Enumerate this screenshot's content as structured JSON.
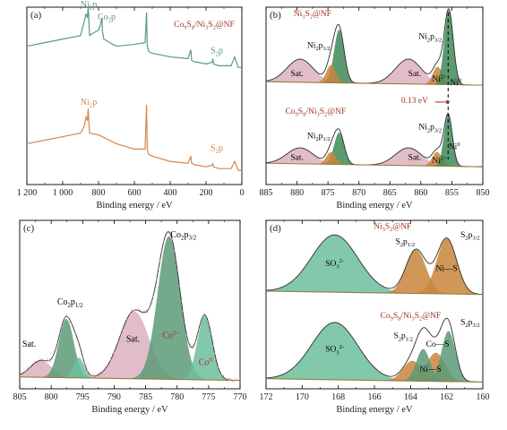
{
  "figure": {
    "colors": {
      "green": "#5d9a78",
      "orange": "#d6874a",
      "green_dark": "#3f8a58",
      "teal": "#6cbf9e",
      "pink": "#dcb2c0",
      "tan": "#c8853c",
      "envelope": "#2c2c2c",
      "baseline": "#9a7a3a",
      "label_red": "#a23028"
    }
  },
  "chart_data": [
    {
      "panel": "(a)",
      "type": "line",
      "xlabel": "Binding energy / eV",
      "ylabel": "",
      "xlim": [
        1200,
        0
      ],
      "xreverse": true,
      "ylim": [
        0,
        1
      ],
      "x_ticks": [
        1200,
        1000,
        800,
        600,
        400,
        200,
        0
      ],
      "x_tick_labels": [
        "1 200",
        "1 000",
        "800",
        "600",
        "400",
        "200",
        "0"
      ],
      "legend_title": "Co9S8/Ni3S2@NF",
      "series": [
        {
          "name": "Co9S8/Ni3S2@NF",
          "color": "#5d9a78",
          "x": [
            1200,
            1100,
            1000,
            950,
            900,
            880,
            870,
            862,
            858,
            855,
            852,
            850,
            820,
            800,
            790,
            781,
            778,
            770,
            720,
            700,
            600,
            540,
            532,
            528,
            520,
            500,
            400,
            300,
            285,
            280,
            260,
            250,
            200,
            165,
            162,
            158,
            130,
            60,
            40,
            20,
            0
          ],
          "y": [
            0.78,
            0.8,
            0.82,
            0.83,
            0.84,
            0.92,
            0.96,
            0.94,
            1.0,
            0.95,
            0.88,
            0.84,
            0.86,
            0.87,
            0.9,
            0.94,
            0.86,
            0.82,
            0.79,
            0.78,
            0.79,
            0.8,
            0.97,
            0.78,
            0.75,
            0.74,
            0.72,
            0.71,
            0.76,
            0.7,
            0.69,
            0.69,
            0.68,
            0.69,
            0.71,
            0.68,
            0.67,
            0.67,
            0.72,
            0.66,
            0.66
          ]
        },
        {
          "name": "Ni3S2@NF",
          "color": "#d6874a",
          "x": [
            1200,
            1100,
            1000,
            950,
            900,
            880,
            870,
            862,
            858,
            855,
            852,
            850,
            800,
            700,
            600,
            540,
            532,
            528,
            520,
            500,
            400,
            300,
            285,
            280,
            260,
            250,
            200,
            165,
            162,
            158,
            130,
            60,
            40,
            20,
            0
          ],
          "y": [
            0.23,
            0.25,
            0.27,
            0.28,
            0.29,
            0.33,
            0.38,
            0.36,
            0.43,
            0.38,
            0.32,
            0.29,
            0.28,
            0.23,
            0.2,
            0.2,
            0.45,
            0.2,
            0.17,
            0.16,
            0.13,
            0.12,
            0.16,
            0.12,
            0.11,
            0.11,
            0.1,
            0.11,
            0.12,
            0.1,
            0.09,
            0.09,
            0.13,
            0.08,
            0.08
          ]
        }
      ],
      "annotations": [
        {
          "text": "Ni2p",
          "x": 855,
          "y": 1.0,
          "color": "#5d9a78"
        },
        {
          "text": "Co2p",
          "x": 755,
          "y": 0.93,
          "color": "#5d9a78"
        },
        {
          "text": "S2p",
          "x": 140,
          "y": 0.74,
          "color": "#5d9a78"
        },
        {
          "text": "Ni2p",
          "x": 855,
          "y": 0.45,
          "color": "#d6874a"
        },
        {
          "text": "S2p",
          "x": 140,
          "y": 0.19,
          "color": "#d6874a"
        }
      ]
    },
    {
      "panel": "(b)",
      "type": "area",
      "xlabel": "Binding energy / eV",
      "ylabel": "",
      "xlim": [
        885,
        850
      ],
      "xreverse": true,
      "x_ticks": [
        885,
        880,
        875,
        870,
        865,
        860,
        855,
        850
      ],
      "x_tick_labels": [
        "885",
        "880",
        "875",
        "870",
        "865",
        "860",
        "855",
        "850"
      ],
      "vline_x": 855.6,
      "spectra": [
        {
          "name": "Ni3S2@NF",
          "offset": 0.56,
          "peaks": [
            {
              "label": "Ni2+",
              "center": 857.3,
              "height": 0.1,
              "fwhm": 1.8,
              "color": "#c8853c"
            },
            {
              "label": "Ni0",
              "center": 855.5,
              "height": 0.42,
              "fwhm": 1.7,
              "color": "#3f8a58"
            },
            {
              "label": "Sat.",
              "center": 862.0,
              "height": 0.14,
              "fwhm": 5.0,
              "color": "#dcb2c0"
            },
            {
              "label": "",
              "center": 874.5,
              "height": 0.1,
              "fwhm": 1.8,
              "color": "#c8853c"
            },
            {
              "label": "Ni2p1/2",
              "center": 873.2,
              "height": 0.3,
              "fwhm": 1.9,
              "color": "#3f8a58"
            },
            {
              "label": "Sat.",
              "center": 879.5,
              "height": 0.13,
              "fwhm": 5.0,
              "color": "#dcb2c0"
            }
          ]
        },
        {
          "name": "Co9S8/Ni3S2@NF",
          "offset": 0.1,
          "peaks": [
            {
              "label": "Ni2+",
              "center": 857.4,
              "height": 0.08,
              "fwhm": 1.8,
              "color": "#c8853c"
            },
            {
              "label": "Ni0",
              "center": 855.6,
              "height": 0.29,
              "fwhm": 1.6,
              "color": "#3f8a58"
            },
            {
              "label": "Sat.",
              "center": 862.0,
              "height": 0.1,
              "fwhm": 5.0,
              "color": "#dcb2c0"
            },
            {
              "label": "",
              "center": 874.5,
              "height": 0.07,
              "fwhm": 1.8,
              "color": "#c8853c"
            },
            {
              "label": "Ni2p1/2",
              "center": 873.2,
              "height": 0.18,
              "fwhm": 1.9,
              "color": "#3f8a58"
            },
            {
              "label": "Sat.",
              "center": 879.5,
              "height": 0.09,
              "fwhm": 5.0,
              "color": "#dcb2c0"
            }
          ]
        }
      ],
      "annotations": [
        {
          "text": "Ni3S2@NF",
          "x": 877.5,
          "y": 0.95,
          "color": "#a23028"
        },
        {
          "text": "Ni2p1/2",
          "x": 876.5,
          "y": 0.77,
          "color": "#000000"
        },
        {
          "text": "Ni2p3/2",
          "x": 858.5,
          "y": 0.82,
          "color": "#000000"
        },
        {
          "text": "Sat.",
          "x": 880.0,
          "y": 0.61,
          "color": "#000000"
        },
        {
          "text": "Sat.",
          "x": 861.0,
          "y": 0.61,
          "color": "#000000"
        },
        {
          "text": "Ni2+",
          "x": 857.0,
          "y": 0.58,
          "color": "#000000"
        },
        {
          "text": "Ni0",
          "x": 854.4,
          "y": 0.56,
          "color": "#000000"
        },
        {
          "text": "0.13 eV",
          "x": 861.0,
          "y": 0.46,
          "color": "#a23028"
        },
        {
          "text": "Co9S8/Ni3S2@NF",
          "x": 877.0,
          "y": 0.4,
          "color": "#a23028"
        },
        {
          "text": "Ni2p1/2",
          "x": 876.5,
          "y": 0.26,
          "color": "#000000"
        },
        {
          "text": "Ni2p3/2",
          "x": 858.5,
          "y": 0.31,
          "color": "#000000"
        },
        {
          "text": "Sat.",
          "x": 880.0,
          "y": 0.14,
          "color": "#000000"
        },
        {
          "text": "Sat.",
          "x": 861.0,
          "y": 0.14,
          "color": "#000000"
        },
        {
          "text": "Ni2+",
          "x": 857.0,
          "y": 0.12,
          "color": "#000000"
        },
        {
          "text": "Ni0",
          "x": 854.6,
          "y": 0.2,
          "color": "#000000"
        }
      ]
    },
    {
      "panel": "(c)",
      "type": "area",
      "xlabel": "Binding energy / eV",
      "ylabel": "",
      "xlim": [
        805,
        770
      ],
      "xreverse": true,
      "x_ticks": [
        805,
        800,
        795,
        790,
        785,
        780,
        775,
        770
      ],
      "x_tick_labels": [
        "805",
        "800",
        "795",
        "790",
        "785",
        "780",
        "775",
        "770"
      ],
      "spectra": [
        {
          "name": "Co9S8/Ni3S2@NF",
          "offset": 0.05,
          "peaks": [
            {
              "label": "Co2+",
              "center": 781.3,
              "height": 0.85,
              "fwhm": 4.2,
              "color": "#5d9a78"
            },
            {
              "label": "Co0",
              "center": 775.6,
              "height": 0.38,
              "fwhm": 2.8,
              "color": "#6cbf9e"
            },
            {
              "label": "Sat.",
              "center": 786.8,
              "height": 0.4,
              "fwhm": 5.5,
              "color": "#dcb2c0"
            },
            {
              "label": "Co2p1/2",
              "center": 797.6,
              "height": 0.35,
              "fwhm": 2.8,
              "color": "#5d9a78"
            },
            {
              "label": "",
              "center": 795.6,
              "height": 0.12,
              "fwhm": 2.0,
              "color": "#6cbf9e"
            },
            {
              "label": "Sat.",
              "center": 801.6,
              "height": 0.1,
              "fwhm": 4.0,
              "color": "#dcb2c0"
            }
          ]
        }
      ],
      "annotations": [
        {
          "text": "Co2p3/2",
          "x": 779.0,
          "y": 0.9,
          "color": "#000000"
        },
        {
          "text": "Co2p1/2",
          "x": 797.0,
          "y": 0.5,
          "color": "#000000"
        },
        {
          "text": "Sat.",
          "x": 803.5,
          "y": 0.25,
          "color": "#000000"
        },
        {
          "text": "Sat.",
          "x": 787.0,
          "y": 0.28,
          "color": "#000000"
        },
        {
          "text": "Co2+",
          "x": 781.0,
          "y": 0.3,
          "color": "#a23028"
        },
        {
          "text": "Co0",
          "x": 775.5,
          "y": 0.14,
          "color": "#a23028"
        }
      ]
    },
    {
      "panel": "(d)",
      "type": "area",
      "xlabel": "Binding energy / eV",
      "ylabel": "",
      "xlim": [
        172,
        160
      ],
      "xreverse": true,
      "x_ticks": [
        172,
        170,
        168,
        166,
        164,
        162,
        160
      ],
      "x_tick_labels": [
        "172",
        "170",
        "168",
        "166",
        "164",
        "162",
        "160"
      ],
      "spectra": [
        {
          "name": "Ni3S2@NF",
          "offset": 0.56,
          "peaks": [
            {
              "label": "SO3 2-",
              "center": 168.2,
              "height": 0.34,
              "fwhm": 3.0,
              "color": "#6cbf9e"
            },
            {
              "label": "S2p1/2",
              "center": 163.7,
              "height": 0.26,
              "fwhm": 1.3,
              "color": "#c8853c"
            },
            {
              "label": "Ni—S",
              "center": 162.0,
              "height": 0.33,
              "fwhm": 1.3,
              "color": "#c8853c"
            }
          ]
        },
        {
          "name": "Co9S8/Ni3S2@NF",
          "offset": 0.04,
          "peaks": [
            {
              "label": "SO3 2-",
              "center": 168.2,
              "height": 0.34,
              "fwhm": 3.0,
              "color": "#6cbf9e"
            },
            {
              "label": "S2p1/2",
              "center": 163.9,
              "height": 0.12,
              "fwhm": 1.2,
              "color": "#c8853c"
            },
            {
              "label": "",
              "center": 163.3,
              "height": 0.19,
              "fwhm": 0.9,
              "color": "#5d9a78"
            },
            {
              "label": "Ni—S",
              "center": 162.6,
              "height": 0.17,
              "fwhm": 1.2,
              "color": "#c8853c"
            },
            {
              "label": "Co—S",
              "center": 161.9,
              "height": 0.3,
              "fwhm": 0.9,
              "color": "#5d9a78"
            }
          ]
        }
      ],
      "annotations": [
        {
          "text": "Ni3S2@NF",
          "x": 165.0,
          "y": 0.95,
          "color": "#a23028"
        },
        {
          "text": "SO3 2-",
          "x": 168.2,
          "y": 0.73,
          "color": "#000000"
        },
        {
          "text": "S2p1/2",
          "x": 164.3,
          "y": 0.86,
          "color": "#000000"
        },
        {
          "text": "S2p3/2",
          "x": 160.7,
          "y": 0.9,
          "color": "#000000"
        },
        {
          "text": "Ni—S",
          "x": 162.0,
          "y": 0.7,
          "color": "#000000"
        },
        {
          "text": "Co9S8/Ni3S2@NF",
          "x": 164.0,
          "y": 0.42,
          "color": "#a23028"
        },
        {
          "text": "SO3 2-",
          "x": 168.2,
          "y": 0.22,
          "color": "#000000"
        },
        {
          "text": "S2p1/2",
          "x": 164.4,
          "y": 0.3,
          "color": "#000000"
        },
        {
          "text": "S2p3/2",
          "x": 160.7,
          "y": 0.38,
          "color": "#000000"
        },
        {
          "text": "Co—S",
          "x": 162.5,
          "y": 0.25,
          "color": "#000000"
        },
        {
          "text": "Ni—S",
          "x": 162.9,
          "y": 0.1,
          "color": "#000000"
        }
      ]
    }
  ]
}
